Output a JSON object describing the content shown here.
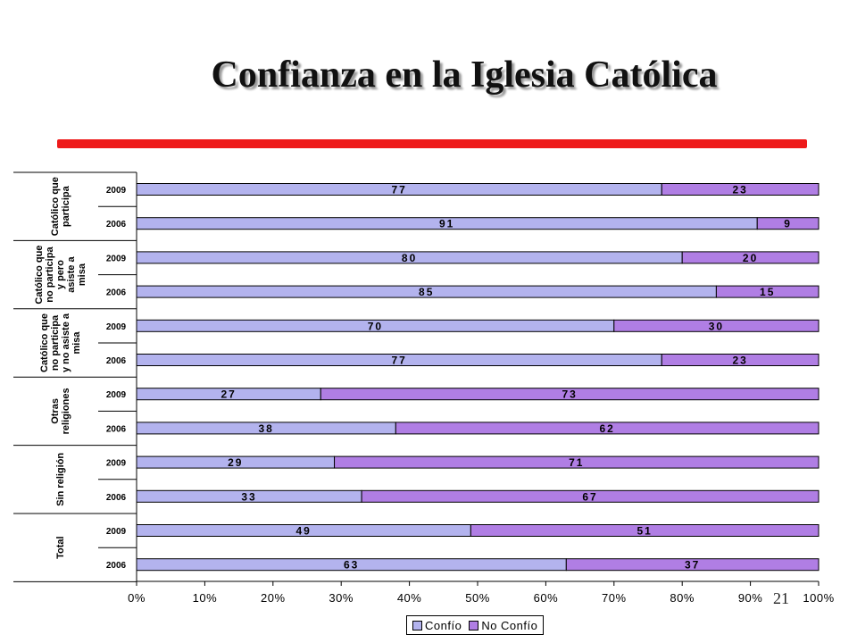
{
  "slide": {
    "title": "Confianza en la Iglesia Católica",
    "page_number": "21"
  },
  "colors": {
    "confio": "#b3b3ee",
    "no_confio": "#b07ee4",
    "title_rule": "#ee1a1a"
  },
  "chart_data": {
    "type": "bar",
    "orientation": "horizontal",
    "stacked": "100%",
    "groups": [
      {
        "label": "Católico que participa",
        "lines": [
          "Católico que",
          "participa"
        ]
      },
      {
        "label": "Católico que no participa y pero asiste a misa",
        "lines": [
          "Católico que",
          "no participa",
          "y pero",
          "asiste a",
          "misa"
        ]
      },
      {
        "label": "Católico que no participa y no asiste a misa",
        "lines": [
          "Católico que",
          "no participa",
          "y no asiste a",
          "misa"
        ]
      },
      {
        "label": "Otras religiones",
        "lines": [
          "Otras",
          "religiones"
        ]
      },
      {
        "label": "Sin religión",
        "lines": [
          "Sin religión"
        ]
      },
      {
        "label": "Total",
        "lines": [
          "Total"
        ]
      }
    ],
    "categories": [
      "Católico que participa 2009",
      "Católico que participa 2006",
      "Católico que no participa y pero asiste a misa 2009",
      "Católico que no participa y pero asiste a misa 2006",
      "Católico que no participa y no asiste a misa 2009",
      "Católico que no participa y no asiste a misa 2006",
      "Otras religiones 2009",
      "Otras religiones 2006",
      "Sin religión 2009",
      "Sin religión 2006",
      "Total 2009",
      "Total 2006"
    ],
    "years": [
      "2009",
      "2006",
      "2009",
      "2006",
      "2009",
      "2006",
      "2009",
      "2006",
      "2009",
      "2006",
      "2009",
      "2006"
    ],
    "series": [
      {
        "name": "Confío",
        "values": [
          77,
          91,
          80,
          85,
          70,
          77,
          27,
          38,
          29,
          33,
          49,
          63
        ]
      },
      {
        "name": "No Confío",
        "values": [
          23,
          9,
          20,
          15,
          30,
          23,
          73,
          62,
          71,
          67,
          51,
          37
        ]
      }
    ],
    "x_ticks": [
      "0%",
      "10%",
      "20%",
      "30%",
      "40%",
      "50%",
      "60%",
      "70%",
      "80%",
      "90%",
      "100%"
    ],
    "xlim": [
      0,
      100
    ],
    "grid": false,
    "legend_position": "bottom"
  }
}
